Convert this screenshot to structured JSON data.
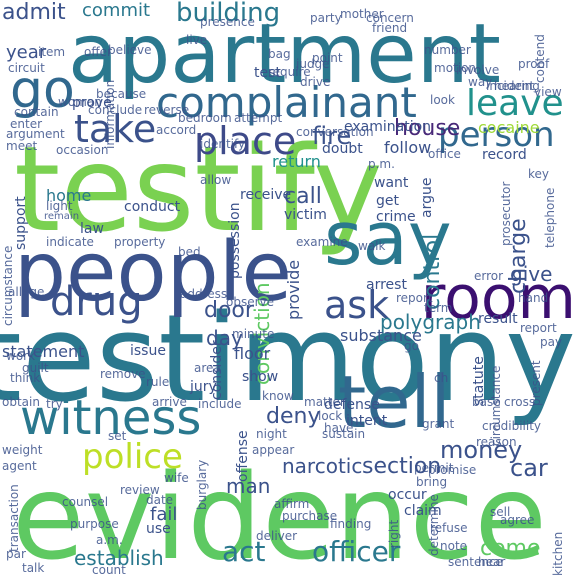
{
  "words": [
    {
      "text": "testify",
      "color": "#7ad151"
    },
    {
      "text": "testimony",
      "color": "#2a788e"
    },
    {
      "text": "evidence",
      "color": "#5ec962"
    },
    {
      "text": "apartment",
      "color": "#2a788e"
    },
    {
      "text": "people",
      "color": "#3b528b"
    },
    {
      "text": "say",
      "color": "#2a788e"
    },
    {
      "text": "tell",
      "color": "#31688e"
    },
    {
      "text": "witness",
      "color": "#2a788e"
    },
    {
      "text": "room",
      "color": "#3b0f70"
    },
    {
      "text": "complainant",
      "color": "#31688e"
    },
    {
      "text": "go",
      "color": "#31688e"
    },
    {
      "text": "take",
      "color": "#3b528b"
    },
    {
      "text": "place",
      "color": "#3e4a89"
    },
    {
      "text": "leave",
      "color": "#21918c"
    },
    {
      "text": "person",
      "color": "#31688e"
    },
    {
      "text": "drug",
      "color": "#3b528b"
    },
    {
      "text": "ask",
      "color": "#3b528b"
    },
    {
      "text": "police",
      "color": "#bddf26"
    },
    {
      "text": "narcotic",
      "color": "#3b528b"
    },
    {
      "text": "section",
      "color": "#3b528b"
    },
    {
      "text": "officer",
      "color": "#2a788e"
    },
    {
      "text": "establish",
      "color": "#2a788e"
    },
    {
      "text": "act",
      "color": "#2a788e"
    },
    {
      "text": "come",
      "color": "#5ec962"
    },
    {
      "text": "building",
      "color": "#2a788e"
    },
    {
      "text": "house",
      "color": "#482878"
    },
    {
      "text": "fire",
      "color": "#3b528b"
    },
    {
      "text": "admit",
      "color": "#3b528b"
    },
    {
      "text": "commit",
      "color": "#2a788e"
    },
    {
      "text": "year",
      "color": "#3b528b"
    },
    {
      "text": "cocaine",
      "color": "#a0da39"
    },
    {
      "text": "door",
      "color": "#3b528b"
    },
    {
      "text": "day",
      "color": "#3b528b"
    },
    {
      "text": "control",
      "color": "#2a788e"
    },
    {
      "text": "charge",
      "color": "#3b528b"
    },
    {
      "text": "give",
      "color": "#3b528b"
    },
    {
      "text": "call",
      "color": "#3b528b"
    },
    {
      "text": "conviction",
      "color": "#5ec962"
    },
    {
      "text": "deny",
      "color": "#3b528b"
    },
    {
      "text": "money",
      "color": "#3b528b"
    },
    {
      "text": "car",
      "color": "#3b528b"
    },
    {
      "text": "man",
      "color": "#3b528b"
    },
    {
      "text": "polygraph",
      "color": "#2a788e"
    },
    {
      "text": "return",
      "color": "#21918c"
    },
    {
      "text": "follow",
      "color": "#3b528b"
    },
    {
      "text": "examination",
      "color": "#3b528b"
    },
    {
      "text": "conduct",
      "color": "#3b528b"
    },
    {
      "text": "victim",
      "color": "#3b528b"
    },
    {
      "text": "crime",
      "color": "#3b528b"
    },
    {
      "text": "arrest",
      "color": "#3b528b"
    },
    {
      "text": "substance",
      "color": "#3b528b"
    },
    {
      "text": "statement",
      "color": "#3b528b"
    },
    {
      "text": "issue",
      "color": "#3b528b"
    },
    {
      "text": "floor",
      "color": "#3b528b"
    },
    {
      "text": "show",
      "color": "#3b528b"
    },
    {
      "text": "fail",
      "color": "#3b528b"
    },
    {
      "text": "use",
      "color": "#3b528b"
    },
    {
      "text": "home",
      "color": "#2a788e"
    },
    {
      "text": "law",
      "color": "#3b528b"
    },
    {
      "text": "support",
      "color": "#3b528b"
    },
    {
      "text": "contain",
      "color": "#3b528b"
    },
    {
      "text": "enter",
      "color": "#3b528b"
    },
    {
      "text": "meet",
      "color": "#3b528b"
    },
    {
      "text": "work",
      "color": "#3b528b"
    },
    {
      "text": "obtain",
      "color": "#3b528b"
    },
    {
      "text": "weight",
      "color": "#3b528b"
    },
    {
      "text": "agent",
      "color": "#3b528b"
    },
    {
      "text": "prove",
      "color": "#3b528b"
    },
    {
      "text": "argument",
      "color": "#3b528b"
    },
    {
      "text": "occasion",
      "color": "#3b528b"
    },
    {
      "text": "light",
      "color": "#3b528b"
    },
    {
      "text": "remain",
      "color": "#3b528b"
    },
    {
      "text": "indicate",
      "color": "#3b528b"
    },
    {
      "text": "property",
      "color": "#3b528b"
    },
    {
      "text": "believe",
      "color": "#3b528b"
    },
    {
      "text": "doubt",
      "color": "#3b528b"
    },
    {
      "text": "record",
      "color": "#3b528b"
    },
    {
      "text": "office",
      "color": "#3b528b"
    },
    {
      "text": "want",
      "color": "#3b528b"
    },
    {
      "text": "receive",
      "color": "#3b528b"
    },
    {
      "text": "possession",
      "color": "#3b528b"
    },
    {
      "text": "provide",
      "color": "#3b528b"
    },
    {
      "text": "get",
      "color": "#3b528b"
    },
    {
      "text": "argue",
      "color": "#3b528b"
    },
    {
      "text": "consider",
      "color": "#3b528b"
    },
    {
      "text": "jury",
      "color": "#3b528b"
    },
    {
      "text": "include",
      "color": "#3b528b"
    },
    {
      "text": "arrive",
      "color": "#3b528b"
    },
    {
      "text": "offense",
      "color": "#3b528b"
    },
    {
      "text": "night",
      "color": "#3b528b"
    },
    {
      "text": "appear",
      "color": "#3b528b"
    },
    {
      "text": "know",
      "color": "#3b528b"
    },
    {
      "text": "defense",
      "color": "#3b528b"
    },
    {
      "text": "intent",
      "color": "#3b528b"
    },
    {
      "text": "statute",
      "color": "#3b528b"
    },
    {
      "text": "base",
      "color": "#3b528b"
    },
    {
      "text": "cross",
      "color": "#3b528b"
    },
    {
      "text": "result",
      "color": "#3b528b"
    },
    {
      "text": "term",
      "color": "#3b528b"
    },
    {
      "text": "report",
      "color": "#3b528b"
    },
    {
      "text": "occur",
      "color": "#3b528b"
    },
    {
      "text": "claim",
      "color": "#3b528b"
    },
    {
      "text": "determine",
      "color": "#3b528b"
    },
    {
      "text": "right",
      "color": "#3b528b"
    },
    {
      "text": "finding",
      "color": "#3b528b"
    },
    {
      "text": "affirm",
      "color": "#3b528b"
    },
    {
      "text": "deliver",
      "color": "#3b528b"
    },
    {
      "text": "purchase",
      "color": "#3b528b"
    },
    {
      "text": "burglary",
      "color": "#3b528b"
    },
    {
      "text": "review",
      "color": "#3b528b"
    },
    {
      "text": "counsel",
      "color": "#3b528b"
    },
    {
      "text": "date",
      "color": "#3b528b"
    },
    {
      "text": "purpose",
      "color": "#3b528b"
    },
    {
      "text": "transaction",
      "color": "#3b528b"
    },
    {
      "text": "note",
      "color": "#3b528b"
    },
    {
      "text": "sentence",
      "color": "#3b528b"
    },
    {
      "text": "agree",
      "color": "#3b528b"
    },
    {
      "text": "hand",
      "color": "#3b528b"
    },
    {
      "text": "pay",
      "color": "#3b528b"
    },
    {
      "text": "present",
      "color": "#3b528b"
    },
    {
      "text": "incident",
      "color": "#3b528b"
    },
    {
      "text": "contend",
      "color": "#3b528b"
    },
    {
      "text": "require",
      "color": "#3b528b"
    },
    {
      "text": "test",
      "color": "#3b528b"
    },
    {
      "text": "look",
      "color": "#3b528b"
    },
    {
      "text": "circumstance",
      "color": "#3b528b"
    },
    {
      "text": "allege",
      "color": "#3b528b"
    },
    {
      "text": "observe",
      "color": "#3b528b"
    },
    {
      "text": "area",
      "color": "#3b528b"
    },
    {
      "text": "matter",
      "color": "#3b528b"
    },
    {
      "text": "lock",
      "color": "#3b528b"
    },
    {
      "text": "have",
      "color": "#3b528b"
    },
    {
      "text": "permit",
      "color": "#3b528b"
    },
    {
      "text": "bring",
      "color": "#3b528b"
    },
    {
      "text": "reason",
      "color": "#3b528b"
    },
    {
      "text": "error",
      "color": "#3b528b"
    },
    {
      "text": "guilt",
      "color": "#3b528b"
    },
    {
      "text": "think",
      "color": "#3b528b"
    },
    {
      "text": "remove",
      "color": "#3b528b"
    },
    {
      "text": "count",
      "color": "#3b528b"
    },
    {
      "text": "talk",
      "color": "#3b528b"
    },
    {
      "text": "par",
      "color": "#3b528b"
    },
    {
      "text": "p.m.",
      "color": "#3b528b"
    },
    {
      "text": "a.m.",
      "color": "#3b528b"
    },
    {
      "text": "sell",
      "color": "#3b528b"
    },
    {
      "text": "telephone",
      "color": "#3b528b"
    },
    {
      "text": "walk",
      "color": "#3b528b"
    },
    {
      "text": "accord",
      "color": "#3b528b"
    },
    {
      "text": "reverse",
      "color": "#3b528b"
    },
    {
      "text": "identify",
      "color": "#3b528b"
    },
    {
      "text": "conversation",
      "color": "#3b528b"
    },
    {
      "text": "bag",
      "color": "#3b528b"
    },
    {
      "text": "judge",
      "color": "#3b528b"
    },
    {
      "text": "point",
      "color": "#3b528b"
    },
    {
      "text": "motion",
      "color": "#3b528b"
    },
    {
      "text": "number",
      "color": "#3b528b"
    },
    {
      "text": "friend",
      "color": "#3b528b"
    },
    {
      "text": "mother",
      "color": "#3b528b"
    },
    {
      "text": "party",
      "color": "#3b528b"
    },
    {
      "text": "live",
      "color": "#3b528b"
    },
    {
      "text": "presence",
      "color": "#3b528b"
    },
    {
      "text": "item",
      "color": "#3b528b"
    },
    {
      "text": "information",
      "color": "#3b528b"
    },
    {
      "text": "offer",
      "color": "#3b528b"
    },
    {
      "text": "because",
      "color": "#3b528b"
    },
    {
      "text": "circuit",
      "color": "#3b528b"
    },
    {
      "text": "conclude",
      "color": "#3b528b"
    },
    {
      "text": "bedroom",
      "color": "#3b528b"
    },
    {
      "text": "attempt",
      "color": "#3b528b"
    },
    {
      "text": "drive",
      "color": "#3b528b"
    },
    {
      "text": "involve",
      "color": "#3b528b"
    },
    {
      "text": "way",
      "color": "#3b528b"
    },
    {
      "text": "hearing",
      "color": "#3b528b"
    },
    {
      "text": "view",
      "color": "#3b528b"
    },
    {
      "text": "key",
      "color": "#3b528b"
    },
    {
      "text": "allow",
      "color": "#3b528b"
    },
    {
      "text": "examine",
      "color": "#3b528b"
    },
    {
      "text": "bed",
      "color": "#3b528b"
    },
    {
      "text": "minute",
      "color": "#3b528b"
    },
    {
      "text": "address",
      "color": "#3b528b"
    },
    {
      "text": "rule",
      "color": "#3b528b"
    },
    {
      "text": "promise",
      "color": "#3b528b"
    },
    {
      "text": "sustain",
      "color": "#3b528b"
    },
    {
      "text": "credibility",
      "color": "#3b528b"
    },
    {
      "text": "concern",
      "color": "#3b528b"
    },
    {
      "text": "refuse",
      "color": "#3b528b"
    },
    {
      "text": "hear",
      "color": "#3b528b"
    },
    {
      "text": "kitchen",
      "color": "#3b528b"
    },
    {
      "text": "try",
      "color": "#3b528b"
    },
    {
      "text": "wife",
      "color": "#3b528b"
    },
    {
      "text": "grant",
      "color": "#3b528b"
    },
    {
      "text": "proof",
      "color": "#3b528b"
    },
    {
      "text": "prosecutor",
      "color": "#3b528b"
    },
    {
      "text": "woman",
      "color": "#3b528b"
    },
    {
      "text": "set",
      "color": "#3b528b"
    },
    {
      "text": "ch",
      "color": "#3b528b"
    },
    {
      "text": "circumstance",
      "color": "#3b528b"
    },
    {
      "text": "report",
      "color": "#3b528b"
    },
    {
      "text": "go",
      "color": "#3b528b"
    }
  ]
}
